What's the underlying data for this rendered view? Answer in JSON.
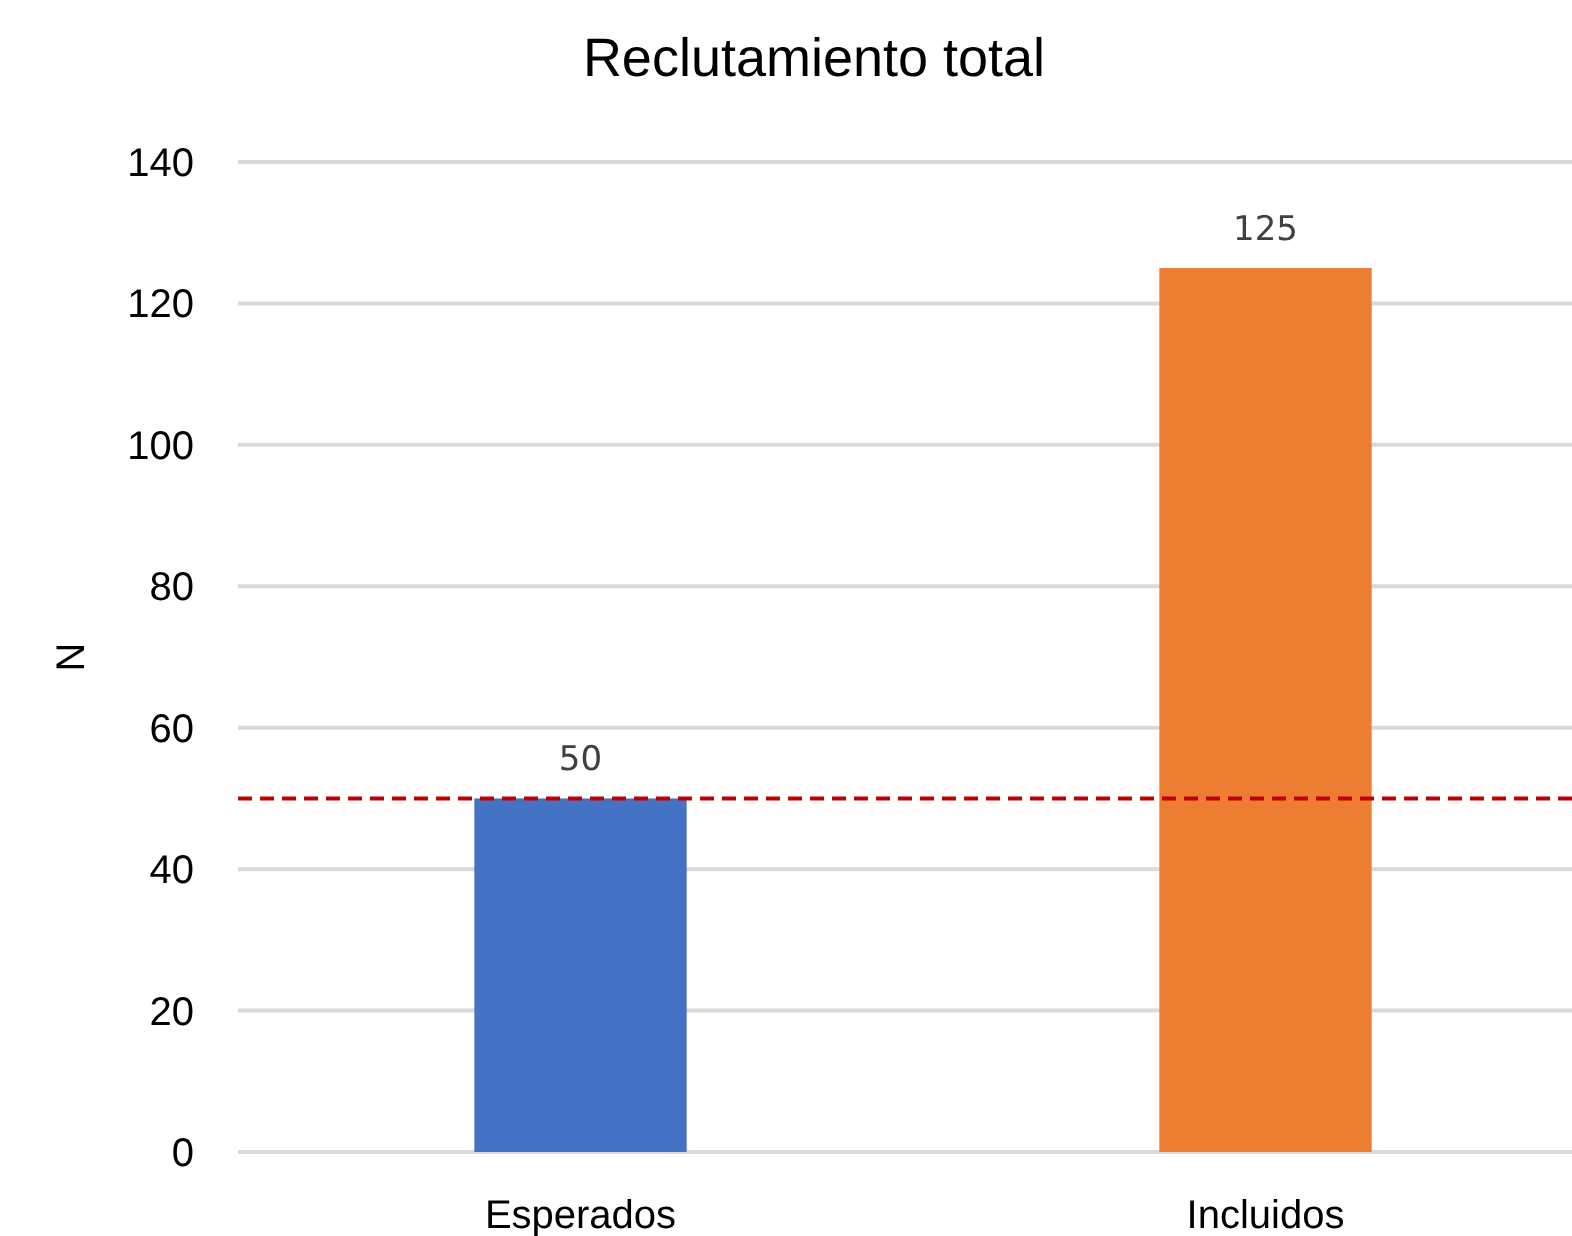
{
  "chart_data": {
    "type": "bar",
    "title": "Reclutamiento total",
    "ylabel": "N",
    "categories": [
      "Esperados",
      "Incluidos"
    ],
    "values": [
      50,
      125
    ],
    "colors": [
      "#4472c4",
      "#ed7d31"
    ],
    "ylim": [
      0,
      140
    ],
    "yticks": [
      0,
      20,
      40,
      60,
      80,
      100,
      120,
      140
    ],
    "grid": "y",
    "data_labels": true,
    "ref_lines": [
      {
        "axis": "y",
        "value": 50,
        "color": "#c00000",
        "line_style": "dashed"
      }
    ]
  }
}
